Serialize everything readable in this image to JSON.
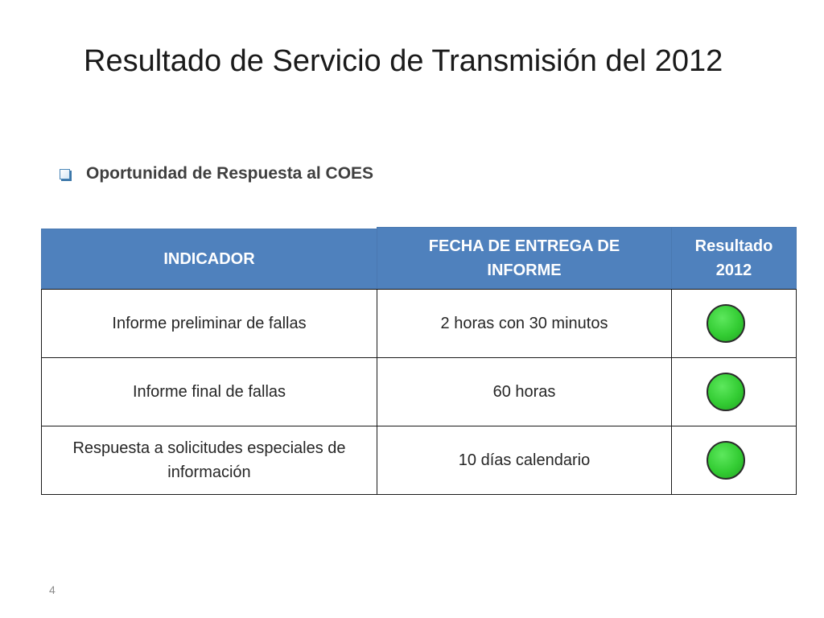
{
  "slide": {
    "title": "Resultado de Servicio de Transmisión del 2012",
    "bullet": "Oportunidad de Respuesta al COES",
    "page_number": "4"
  },
  "table": {
    "headers": {
      "indicador": "INDICADOR",
      "fecha_line1": "FECHA DE ENTREGA DE",
      "fecha_line2": "INFORME",
      "resultado_line1": "Resultado",
      "resultado_line2": "2012"
    },
    "rows": [
      {
        "indicador": "Informe preliminar de fallas",
        "indicador_line2": "",
        "fecha": "2 horas con 30 minutos",
        "status_color": "#33cc33"
      },
      {
        "indicador": "Informe final de fallas",
        "indicador_line2": "",
        "fecha": "60 horas",
        "status_color": "#33cc33"
      },
      {
        "indicador": "Respuesta a solicitudes especiales de",
        "indicador_line2": "información",
        "fecha": "10 días calendario",
        "status_color": "#33cc33"
      }
    ]
  },
  "colors": {
    "header_bg": "#4f81bd",
    "status_green": "#33cc33"
  },
  "icons": {
    "bullet": "hollow-square-bullet-icon",
    "status": "green-circle-icon"
  }
}
